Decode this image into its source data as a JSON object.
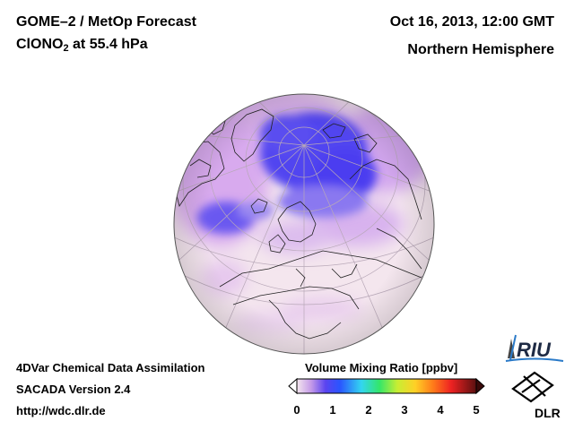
{
  "header": {
    "title_line1": "GOME–2 / MetOp Forecast",
    "species": "ClONO",
    "species_sub": "2",
    "level": " at 55.4 hPa",
    "date": "Oct 16, 2013, 12:00 GMT",
    "region": "Northern Hemisphere"
  },
  "footer": {
    "line1": "4DVar Chemical Data Assimilation",
    "line2": "SACADA Version 2.4",
    "line3": "http://wdc.dlr.de"
  },
  "colorbar": {
    "title": "Volume Mixing Ratio [ppbv]",
    "ticks": [
      "0",
      "1",
      "2",
      "3",
      "4",
      "5"
    ],
    "min": 0,
    "max": 5
  },
  "logos": {
    "riu": "RIU",
    "dlr": "DLR"
  },
  "colors": {
    "low": "#f4e6ee",
    "mid_low": "#c99be8",
    "high": "#3b33ee"
  }
}
